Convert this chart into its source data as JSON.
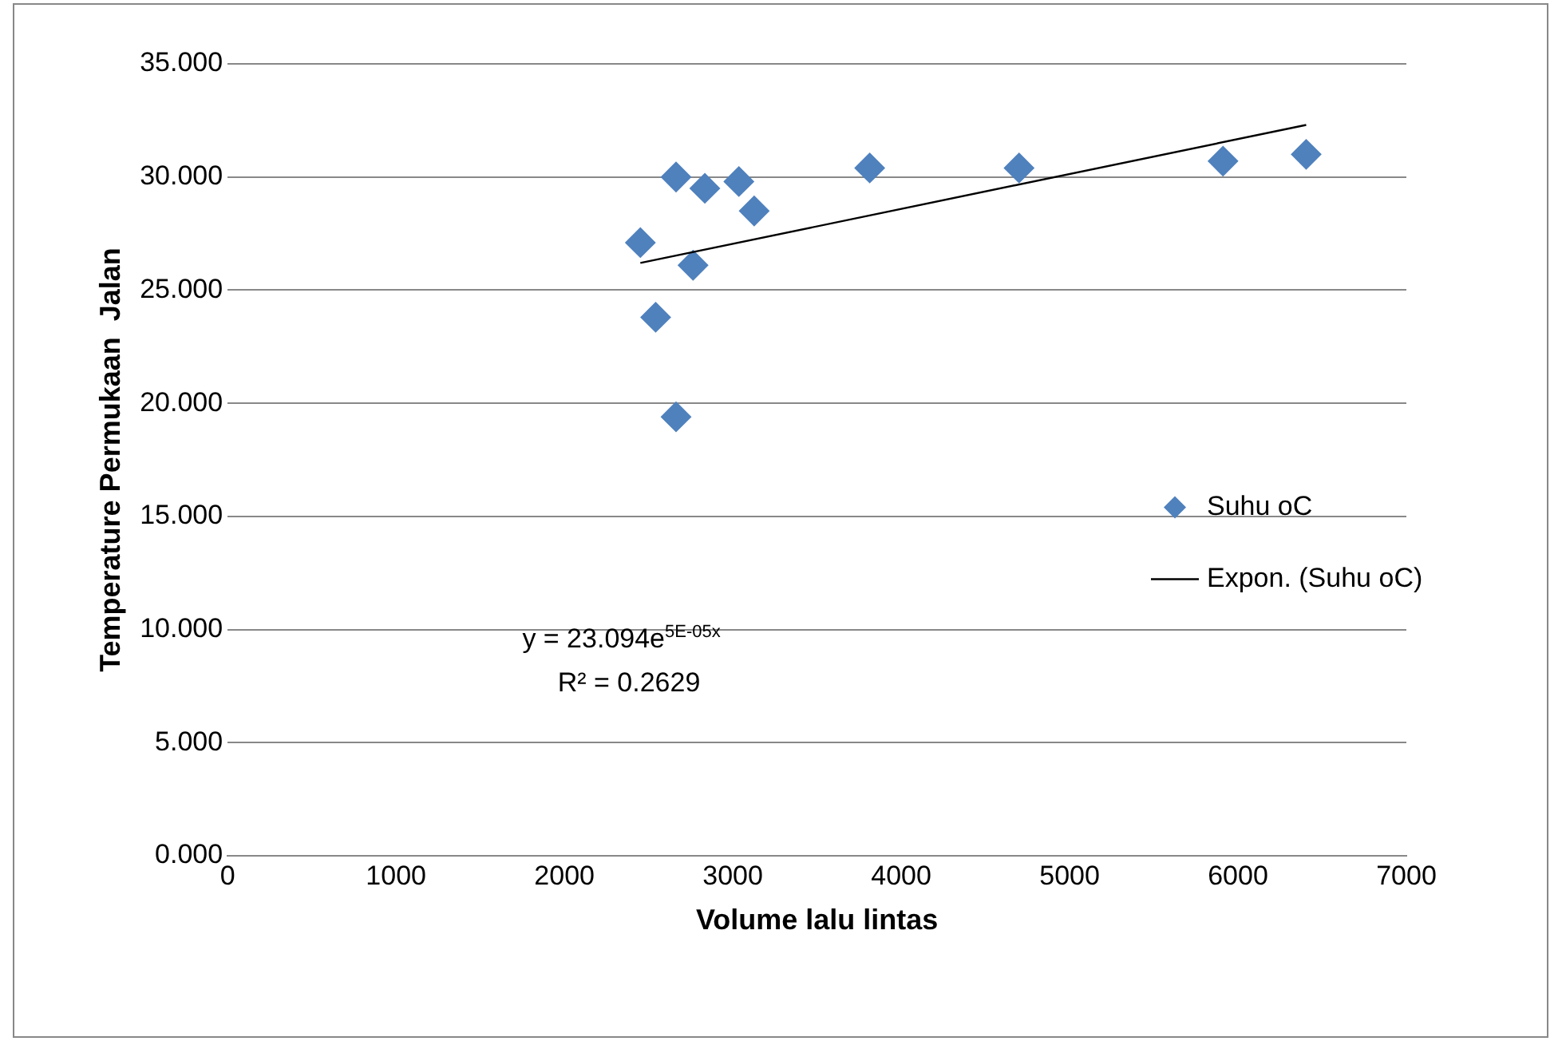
{
  "chart_data": {
    "type": "scatter",
    "xlabel": "Volume lalu lintas",
    "ylabel": "Temperature Permukaan  Jalan",
    "xlim": [
      0,
      7000
    ],
    "xticks": [
      0,
      1000,
      2000,
      3000,
      4000,
      5000,
      6000,
      7000
    ],
    "ylim": [
      0,
      35
    ],
    "yticks": [
      {
        "value": 0,
        "label": "0.000"
      },
      {
        "value": 5,
        "label": "5.000"
      },
      {
        "value": 10,
        "label": "10.000"
      },
      {
        "value": 15,
        "label": "15.000"
      },
      {
        "value": 20,
        "label": "20.000"
      },
      {
        "value": 25,
        "label": "25.000"
      },
      {
        "value": 30,
        "label": "30.000"
      },
      {
        "value": 35,
        "label": "35.000"
      }
    ],
    "grid": "y",
    "legend": "right",
    "series": [
      {
        "name": "Suhu oC",
        "color": "#4f81bd",
        "marker": "diamond",
        "x": [
          2451,
          2542,
          2663,
          2663,
          2764,
          2834,
          3036,
          3127,
          3813,
          4700,
          5911,
          6405
        ],
        "values": [
          27.1,
          23.8,
          30.0,
          19.4,
          26.1,
          29.5,
          29.8,
          28.5,
          30.4,
          30.4,
          30.7,
          31.0
        ]
      },
      {
        "name": "Expon. (Suhu oC)",
        "type": "line",
        "marker": "none",
        "color": "#000000",
        "x": [
          2451,
          6405
        ],
        "values": [
          26.2,
          32.3
        ]
      }
    ],
    "annotations": [
      "y = 23.094e$^{5E-05x}$",
      "R² = 0.2629"
    ]
  }
}
